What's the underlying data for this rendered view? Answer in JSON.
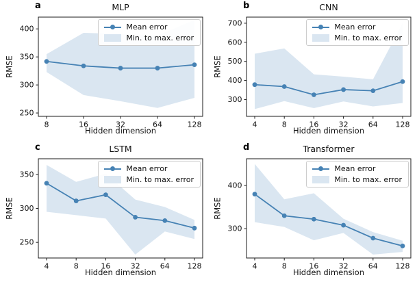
{
  "figure": {
    "xlabel": "Hidden dimension",
    "ylabel": "RMSE",
    "legend": {
      "mean_label": "Mean error",
      "band_label": "Min. to max. error"
    },
    "colors": {
      "line": "#4682b4",
      "band": "#dae6f1",
      "spine": "#1a1a1a",
      "tick_text": "#111111",
      "legend_border": "#cccccc"
    }
  },
  "chart_data": [
    {
      "type": "line",
      "panel_letter": "a",
      "title": "MLP",
      "xlabel": "Hidden dimension",
      "ylabel": "RMSE",
      "x_categories": [
        8,
        16,
        32,
        64,
        128
      ],
      "series": [
        {
          "name": "Mean error",
          "values": [
            342,
            334,
            330,
            330,
            336
          ]
        },
        {
          "name": "Min error",
          "values": [
            323,
            282,
            271,
            259,
            277
          ]
        },
        {
          "name": "Max error",
          "values": [
            355,
            393,
            391,
            388,
            416
          ]
        }
      ],
      "legend": [
        "Mean error",
        "Min. to max. error"
      ],
      "legend_position": "upper right",
      "grid": false,
      "ylim": [
        244,
        421
      ],
      "yticks": [
        250,
        300,
        350,
        400
      ]
    },
    {
      "type": "line",
      "panel_letter": "b",
      "title": "CNN",
      "xlabel": "Hidden dimension",
      "ylabel": "RMSE",
      "x_categories": [
        4,
        8,
        16,
        32,
        64,
        128
      ],
      "series": [
        {
          "name": "Mean error",
          "values": [
            378,
            368,
            325,
            352,
            346,
            394
          ]
        },
        {
          "name": "Min error",
          "values": [
            250,
            292,
            255,
            290,
            264,
            282
          ]
        },
        {
          "name": "Max error",
          "values": [
            540,
            568,
            432,
            420,
            406,
            700
          ]
        }
      ],
      "legend": [
        "Mean error",
        "Min. to max. error"
      ],
      "legend_position": "upper right",
      "grid": false,
      "ylim": [
        212,
        732
      ],
      "yticks": [
        300,
        400,
        500,
        600,
        700
      ]
    },
    {
      "type": "line",
      "panel_letter": "c",
      "title": "LSTM",
      "xlabel": "Hidden dimension",
      "ylabel": "RMSE",
      "x_categories": [
        4,
        8,
        16,
        32,
        64,
        128
      ],
      "series": [
        {
          "name": "Mean error",
          "values": [
            337,
            311,
            320,
            287,
            282,
            271
          ]
        },
        {
          "name": "Min error",
          "values": [
            295,
            290,
            285,
            232,
            266,
            255
          ]
        },
        {
          "name": "Max error",
          "values": [
            364,
            339,
            351,
            313,
            302,
            283
          ]
        }
      ],
      "legend": [
        "Mean error",
        "Min. to max. error"
      ],
      "legend_position": "upper right",
      "grid": false,
      "ylim": [
        227,
        373
      ],
      "yticks": [
        250,
        300,
        350
      ]
    },
    {
      "type": "line",
      "panel_letter": "d",
      "title": "Transformer",
      "xlabel": "Hidden dimension",
      "ylabel": "RMSE",
      "x_categories": [
        4,
        8,
        16,
        32,
        64,
        128
      ],
      "series": [
        {
          "name": "Mean error",
          "values": [
            380,
            330,
            322,
            308,
            278,
            260
          ]
        },
        {
          "name": "Min error",
          "values": [
            315,
            304,
            273,
            290,
            240,
            246
          ]
        },
        {
          "name": "Max error",
          "values": [
            450,
            368,
            382,
            323,
            292,
            272
          ]
        }
      ],
      "legend": [
        "Mean error",
        "Min. to max. error"
      ],
      "legend_position": "upper right",
      "grid": false,
      "ylim": [
        232,
        462
      ],
      "yticks": [
        300,
        400
      ]
    }
  ]
}
